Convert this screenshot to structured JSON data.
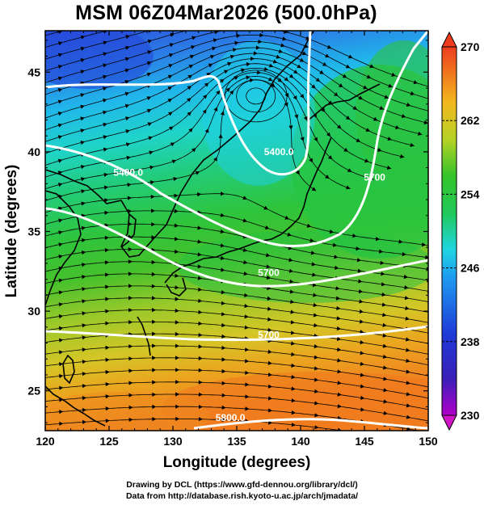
{
  "title": "MSM 06Z04Mar2026 (500.0hPa)",
  "map": {
    "lon_range": [
      120,
      150
    ],
    "lat_range": [
      22.5,
      47.6
    ],
    "lon_ticks": [
      120,
      125,
      130,
      135,
      140,
      145,
      150
    ],
    "lat_ticks": [
      25,
      30,
      35,
      40,
      45
    ],
    "xlabel": "Longitude (degrees)",
    "ylabel": "Latitude  (degrees)",
    "fill_variable_colorbar_ticks": [
      230,
      238,
      246,
      254,
      262,
      270
    ],
    "colorbar_range": [
      230,
      270
    ],
    "contour_labels": [
      {
        "text": "5400.0",
        "lon": 138.3,
        "lat": 39.8
      },
      {
        "text": "5400.0",
        "lon": 126.5,
        "lat": 38.5
      },
      {
        "text": "5700",
        "lon": 145.8,
        "lat": 38.2
      },
      {
        "text": "5700",
        "lon": 137.5,
        "lat": 32.2
      },
      {
        "text": "5700",
        "lon": 137.5,
        "lat": 28.3
      },
      {
        "text": "5800.0",
        "lon": 134.5,
        "lat": 23.1
      }
    ],
    "colors": {
      "cold": "#1f3ad8",
      "cyan": "#1fd0e6",
      "green": "#25c43a",
      "yellow": "#d6d22a",
      "orange": "#f08a1e",
      "contour": "#ffffff",
      "coast": "#000000"
    }
  },
  "credits": {
    "line1": "Drawing by DCL (https://www.gfd-dennou.org/library/dcl/)",
    "line2": "Data from http://database.rish.kyoto-u.ac.jp/arch/jmadata/"
  }
}
